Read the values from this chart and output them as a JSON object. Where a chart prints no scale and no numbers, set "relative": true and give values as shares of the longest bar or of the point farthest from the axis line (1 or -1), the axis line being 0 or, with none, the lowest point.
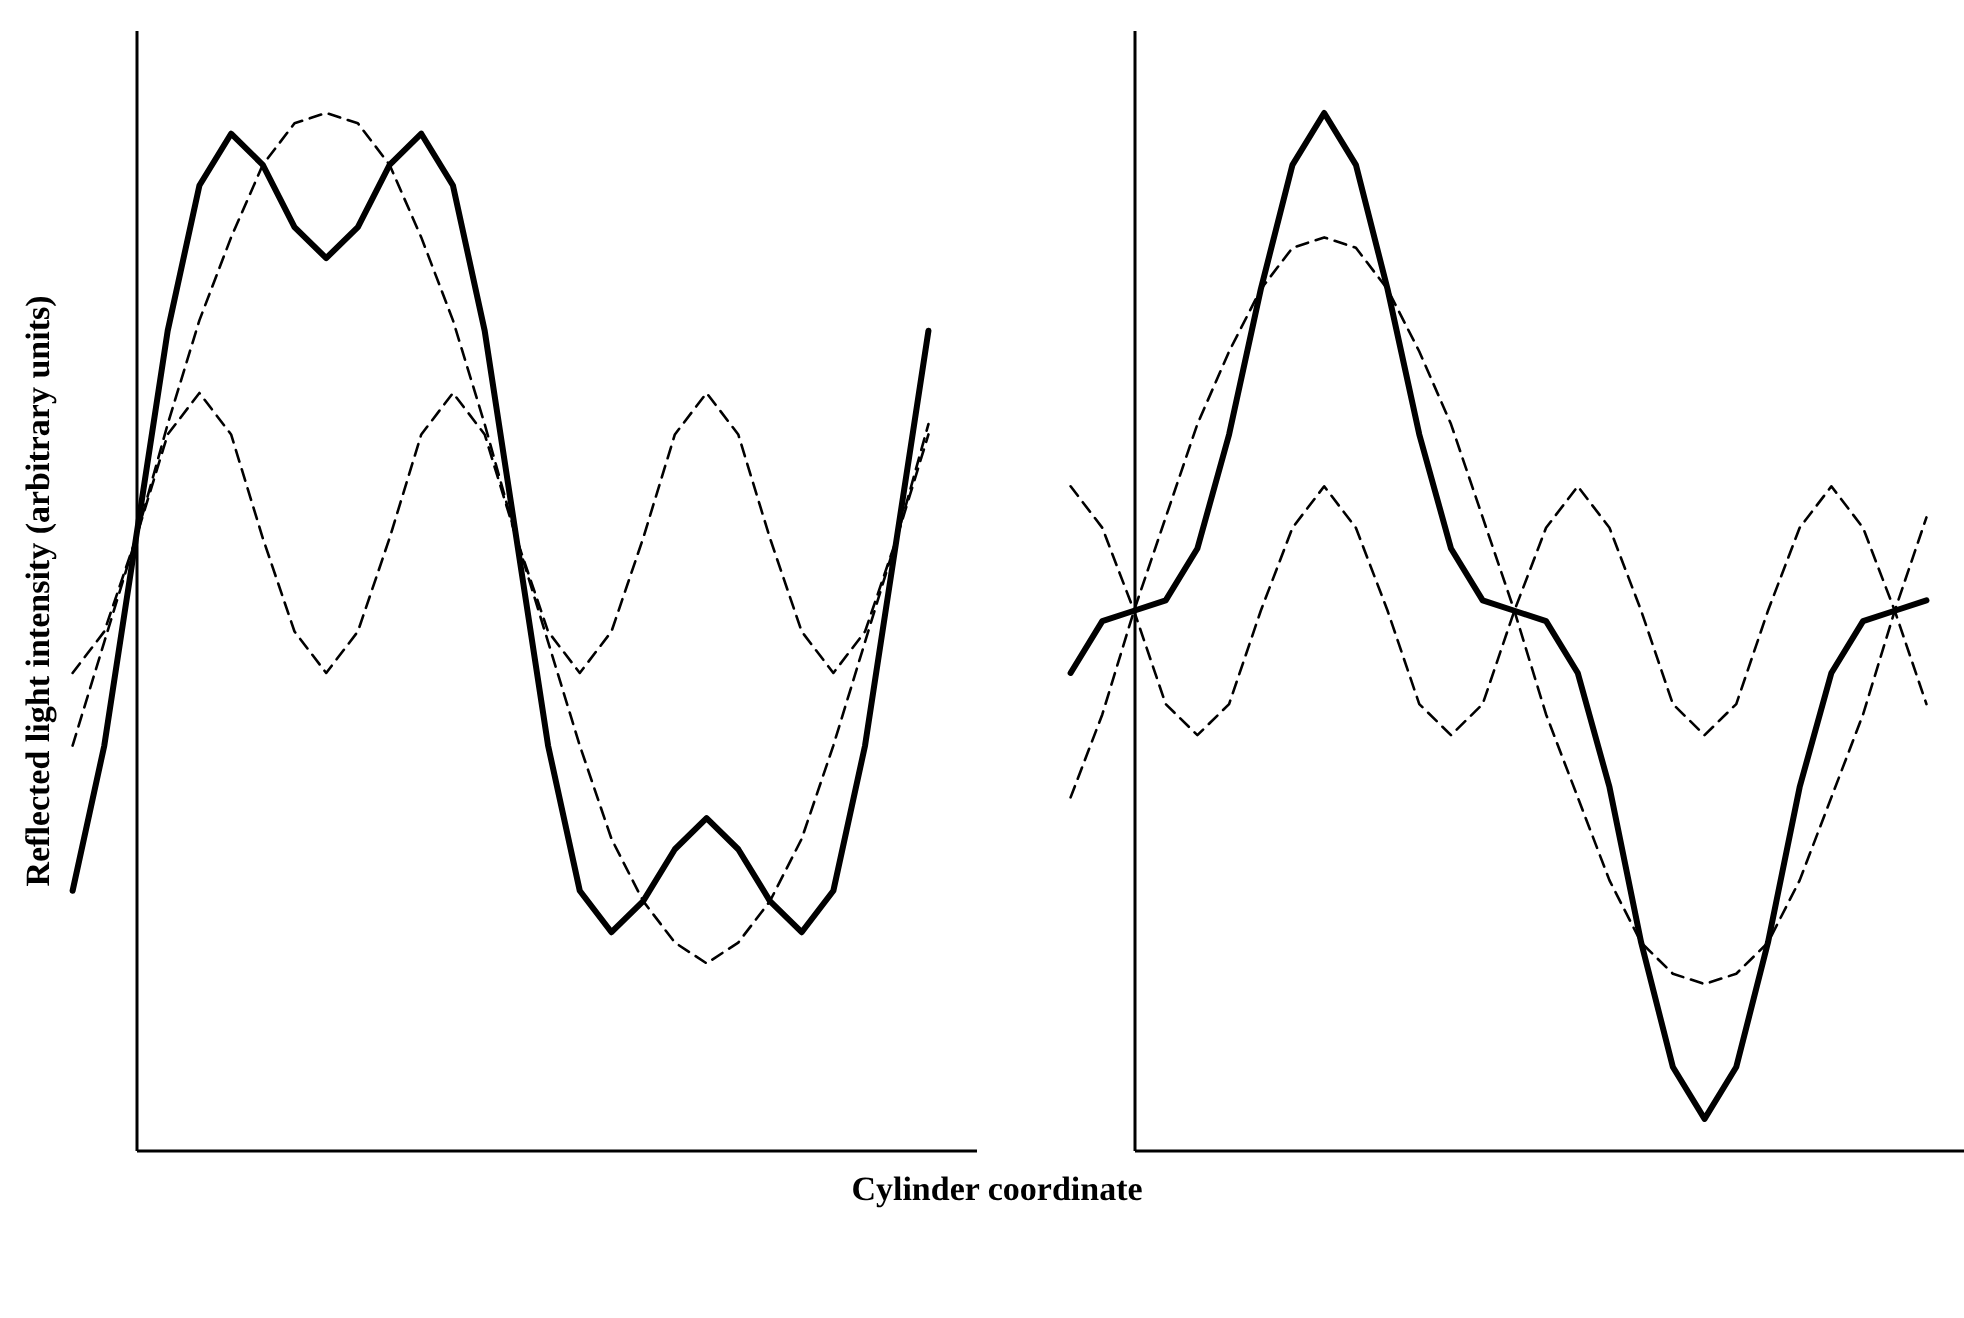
{
  "chart_data": [
    {
      "type": "line",
      "relative": true,
      "ylabel": "Reflected light intensity (arbitrary units)",
      "xlabel": "Cylinder coordinate",
      "marker": "none",
      "categories": [
        null,
        null,
        null,
        null,
        null,
        null,
        null,
        null,
        null,
        null,
        null,
        null,
        null,
        null,
        null,
        null,
        null,
        null,
        null,
        null,
        null,
        null,
        null,
        null,
        null,
        null,
        null,
        null
      ],
      "series": [
        {
          "color": "#000000",
          "line_style": "dashed",
          "values": [
            0.39,
            0.49,
            0.59,
            0.7,
            0.8,
            0.88,
            0.95,
            0.99,
            1,
            0.99,
            0.95,
            0.88,
            0.8,
            0.7,
            0.59,
            0.49,
            0.39,
            0.3,
            0.24,
            0.2,
            0.18,
            0.2,
            0.24,
            0.3,
            0.39,
            0.49,
            0.59,
            0.7
          ]
        },
        {
          "color": "#000000",
          "line_style": "dashed",
          "values": [
            0.46,
            0.5,
            0.59,
            0.69,
            0.73,
            0.69,
            0.59,
            0.5,
            0.46,
            0.5,
            0.59,
            0.69,
            0.73,
            0.69,
            0.59,
            0.5,
            0.46,
            0.5,
            0.59,
            0.69,
            0.73,
            0.69,
            0.59,
            0.5,
            0.46,
            0.5,
            0.59,
            0.69
          ]
        },
        {
          "color": "#000000",
          "line_style": "solid",
          "values": [
            0.25,
            0.39,
            0.59,
            0.79,
            0.93,
            0.98,
            0.95,
            0.89,
            0.86,
            0.89,
            0.95,
            0.98,
            0.93,
            0.79,
            0.59,
            0.39,
            0.25,
            0.21,
            0.24,
            0.29,
            0.32,
            0.29,
            0.24,
            0.21,
            0.25,
            0.39,
            0.59,
            0.79
          ]
        }
      ]
    },
    {
      "type": "line",
      "relative": true,
      "marker": "none",
      "categories": [
        null,
        null,
        null,
        null,
        null,
        null,
        null,
        null,
        null,
        null,
        null,
        null,
        null,
        null,
        null,
        null,
        null,
        null,
        null,
        null,
        null,
        null,
        null,
        null,
        null,
        null,
        null,
        null
      ],
      "series": [
        {
          "color": "#000000",
          "line_style": "dashed",
          "values": [
            0.34,
            0.42,
            0.52,
            0.61,
            0.7,
            0.77,
            0.83,
            0.87,
            0.88,
            0.87,
            0.83,
            0.77,
            0.7,
            0.61,
            0.52,
            0.42,
            0.34,
            0.26,
            0.2,
            0.17,
            0.16,
            0.17,
            0.2,
            0.26,
            0.34,
            0.42,
            0.52,
            0.61
          ]
        },
        {
          "color": "#000000",
          "line_style": "dashed",
          "values": [
            0.64,
            0.6,
            0.52,
            0.43,
            0.4,
            0.43,
            0.52,
            0.6,
            0.64,
            0.6,
            0.52,
            0.43,
            0.4,
            0.43,
            0.52,
            0.6,
            0.64,
            0.6,
            0.52,
            0.43,
            0.4,
            0.43,
            0.52,
            0.6,
            0.64,
            0.6,
            0.52,
            0.43
          ]
        },
        {
          "color": "#000000",
          "line_style": "solid",
          "values": [
            0.46,
            0.51,
            0.52,
            0.53,
            0.58,
            0.69,
            0.83,
            0.95,
            1,
            0.95,
            0.83,
            0.69,
            0.58,
            0.53,
            0.52,
            0.51,
            0.46,
            0.35,
            0.2,
            0.08,
            0.03,
            0.08,
            0.2,
            0.35,
            0.46,
            0.51,
            0.52,
            0.53
          ]
        }
      ]
    }
  ]
}
